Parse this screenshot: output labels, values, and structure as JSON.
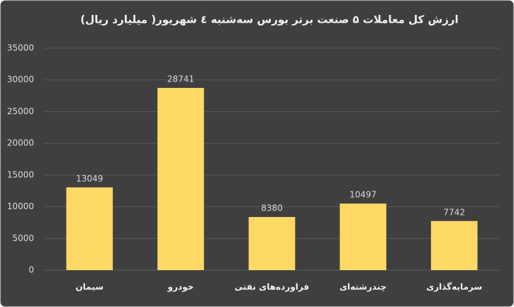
{
  "chart_data": {
    "type": "bar",
    "title": "ارزش کل معاملات ۵ صنعت برتر بورس سه‌شنبه ٤ شهریور( میلیارد ریال)",
    "categories": [
      "سیمان",
      "خودرو",
      "فراورده‌های نفتی",
      "چندرشته‌ای",
      "سرمایه‌گذاری"
    ],
    "values": [
      13049,
      28741,
      8380,
      10497,
      7742
    ],
    "color": "#ffd966",
    "ylim": [
      0,
      35000
    ],
    "yticks": [
      0,
      5000,
      10000,
      15000,
      20000,
      25000,
      30000,
      35000
    ],
    "grid": true
  }
}
